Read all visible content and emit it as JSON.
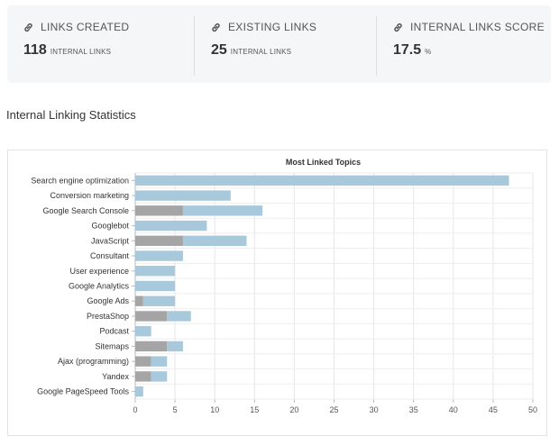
{
  "stats": [
    {
      "label": "LINKS CREATED",
      "value": "118",
      "unit": "INTERNAL LINKS",
      "icon": "link-icon"
    },
    {
      "label": "EXISTING LINKS",
      "value": "25",
      "unit": "INTERNAL LINKS",
      "icon": "link-icon"
    },
    {
      "label": "INTERNAL LINKS SCORE",
      "value": "17.5",
      "unit": "%",
      "icon": "link-icon"
    }
  ],
  "section_title": "Internal Linking Statistics",
  "chart_data": {
    "type": "bar",
    "orientation": "horizontal",
    "stacked": true,
    "title": "Most Linked Topics",
    "categories": [
      "Search engine optimization",
      "Conversion marketing",
      "Google Search Console",
      "Googlebot",
      "JavaScript",
      "Consultant",
      "User experience",
      "Google Analytics",
      "Google Ads",
      "PrestaShop",
      "Podcast",
      "Sitemaps",
      "Ajax (programming)",
      "Yandex",
      "Google PageSpeed Tools"
    ],
    "series": [
      {
        "color": "#a5a5a5",
        "values": [
          0,
          0,
          6,
          0,
          6,
          0,
          0,
          0,
          1,
          4,
          0,
          4,
          2,
          2,
          0
        ]
      },
      {
        "color": "#a8c8dc",
        "values": [
          47,
          12,
          10,
          9,
          8,
          6,
          5,
          5,
          4,
          3,
          2,
          2,
          2,
          2,
          1
        ]
      }
    ],
    "xlim": [
      0,
      50
    ],
    "xticks": [
      "0",
      "5",
      "10",
      "15",
      "20",
      "25",
      "30",
      "35",
      "40",
      "45",
      "50"
    ],
    "grid": true
  }
}
